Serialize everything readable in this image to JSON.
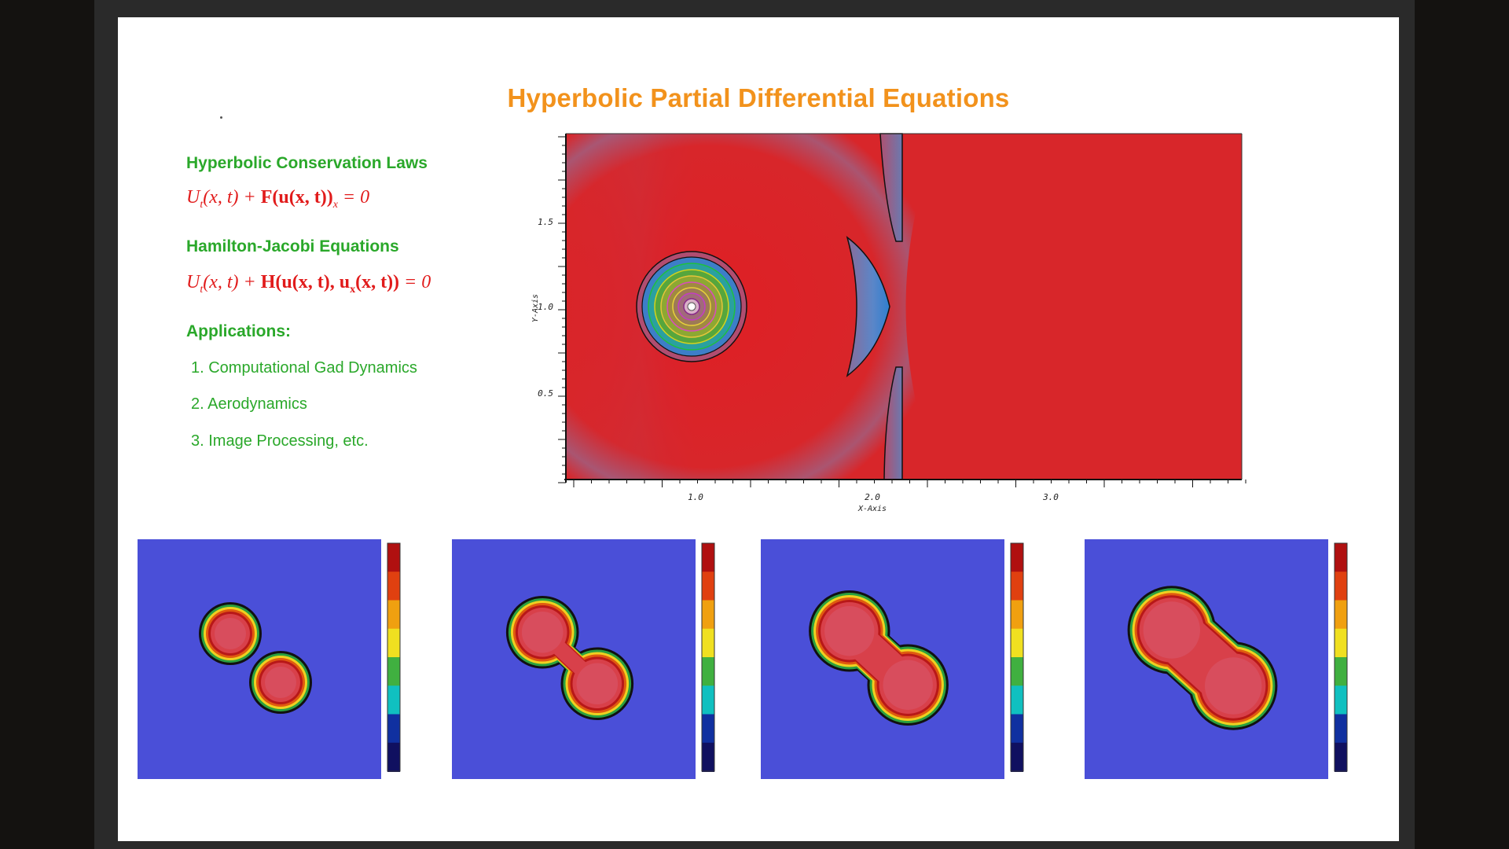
{
  "slide": {
    "title": "Hyperbolic Partial Differential Equations",
    "sections": {
      "conservation_heading": "Hyperbolic Conservation Laws",
      "hamilton_heading": "Hamilton-Jacobi Equations",
      "applications_heading": "Applications:"
    },
    "applications": [
      "1. Computational Gad Dynamics",
      "2. Aerodynamics",
      "3. Image Processing, etc."
    ]
  },
  "main_plot": {
    "y_axis_label": "Y-Axis",
    "x_axis_label": "X-Axis",
    "y_ticks": [
      "1.5",
      "1.0",
      "0.5"
    ],
    "x_ticks": [
      "1.0",
      "2.0",
      "3.0"
    ]
  },
  "colors": {
    "title": "#f2921c",
    "heading": "#2aa82a",
    "equation": "#e11b1b",
    "field_red": "#d8262a",
    "panel_blue": "#4a4fd8"
  },
  "panels": [
    {
      "merge": 0.0
    },
    {
      "merge": 0.35
    },
    {
      "merge": 0.65
    },
    {
      "merge": 0.9
    }
  ]
}
